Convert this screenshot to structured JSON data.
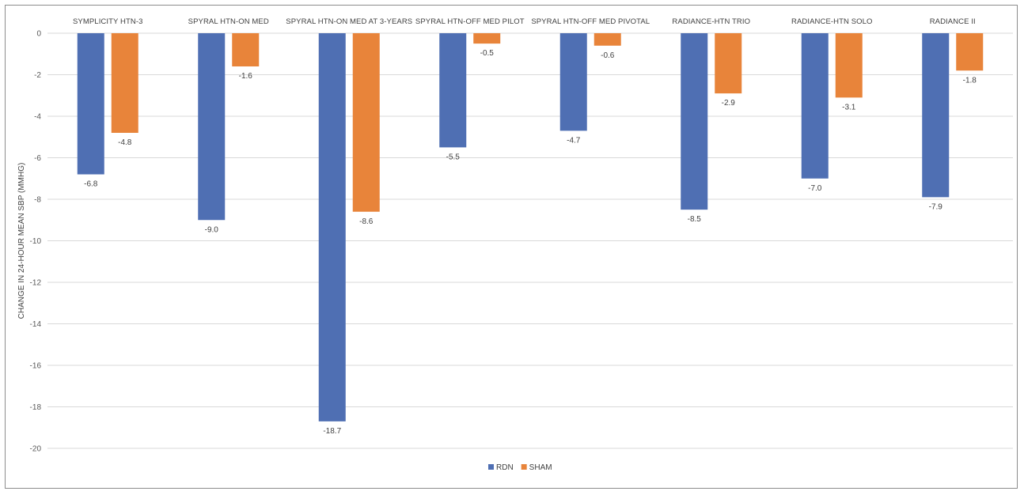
{
  "chart_data": {
    "type": "bar",
    "categories": [
      "SYMPLICITY HTN-3",
      "SPYRAL HTN-ON MED",
      "SPYRAL HTN-ON MED AT 3-YEARS",
      "SPYRAL HTN-OFF MED PILOT",
      "SPYRAL HTN-OFF MED PIVOTAL",
      "RADIANCE-HTN TRIO",
      "RADIANCE-HTN SOLO",
      "RADIANCE II"
    ],
    "series": [
      {
        "name": "RDN",
        "color": "#4f6fb3",
        "values": [
          -6.8,
          -9.0,
          -18.7,
          -5.5,
          -4.7,
          -8.5,
          -7.0,
          -7.9
        ],
        "labels": [
          "-6.8",
          "-9.0",
          "-18.7",
          "-5.5",
          "-4.7",
          "-8.5",
          "-7.0",
          "-7.9"
        ]
      },
      {
        "name": "SHAM",
        "color": "#e8843a",
        "values": [
          -4.8,
          -1.6,
          -8.6,
          -0.5,
          -0.6,
          -2.9,
          -3.1,
          -1.8
        ],
        "labels": [
          "-4.8",
          "-1.6",
          "-8.6",
          "-0.5",
          "-0.6",
          "-2.9",
          "-3.1",
          "-1.8"
        ]
      }
    ],
    "title": "",
    "xlabel": "",
    "ylabel": "CHANGE IN 24-HOUR MEAN SBP (MMHG)",
    "ylim": [
      -20,
      0
    ],
    "yticks": [
      0,
      -2,
      -4,
      -6,
      -8,
      -10,
      -12,
      -14,
      -16,
      -18,
      -20
    ],
    "ytick_labels": [
      "0",
      "-2",
      "-4",
      "-6",
      "-8",
      "-10",
      "-12",
      "-14",
      "-16",
      "-18",
      "-20"
    ],
    "grid": true,
    "legend_position": "bottom",
    "category_axis_position": "top"
  }
}
